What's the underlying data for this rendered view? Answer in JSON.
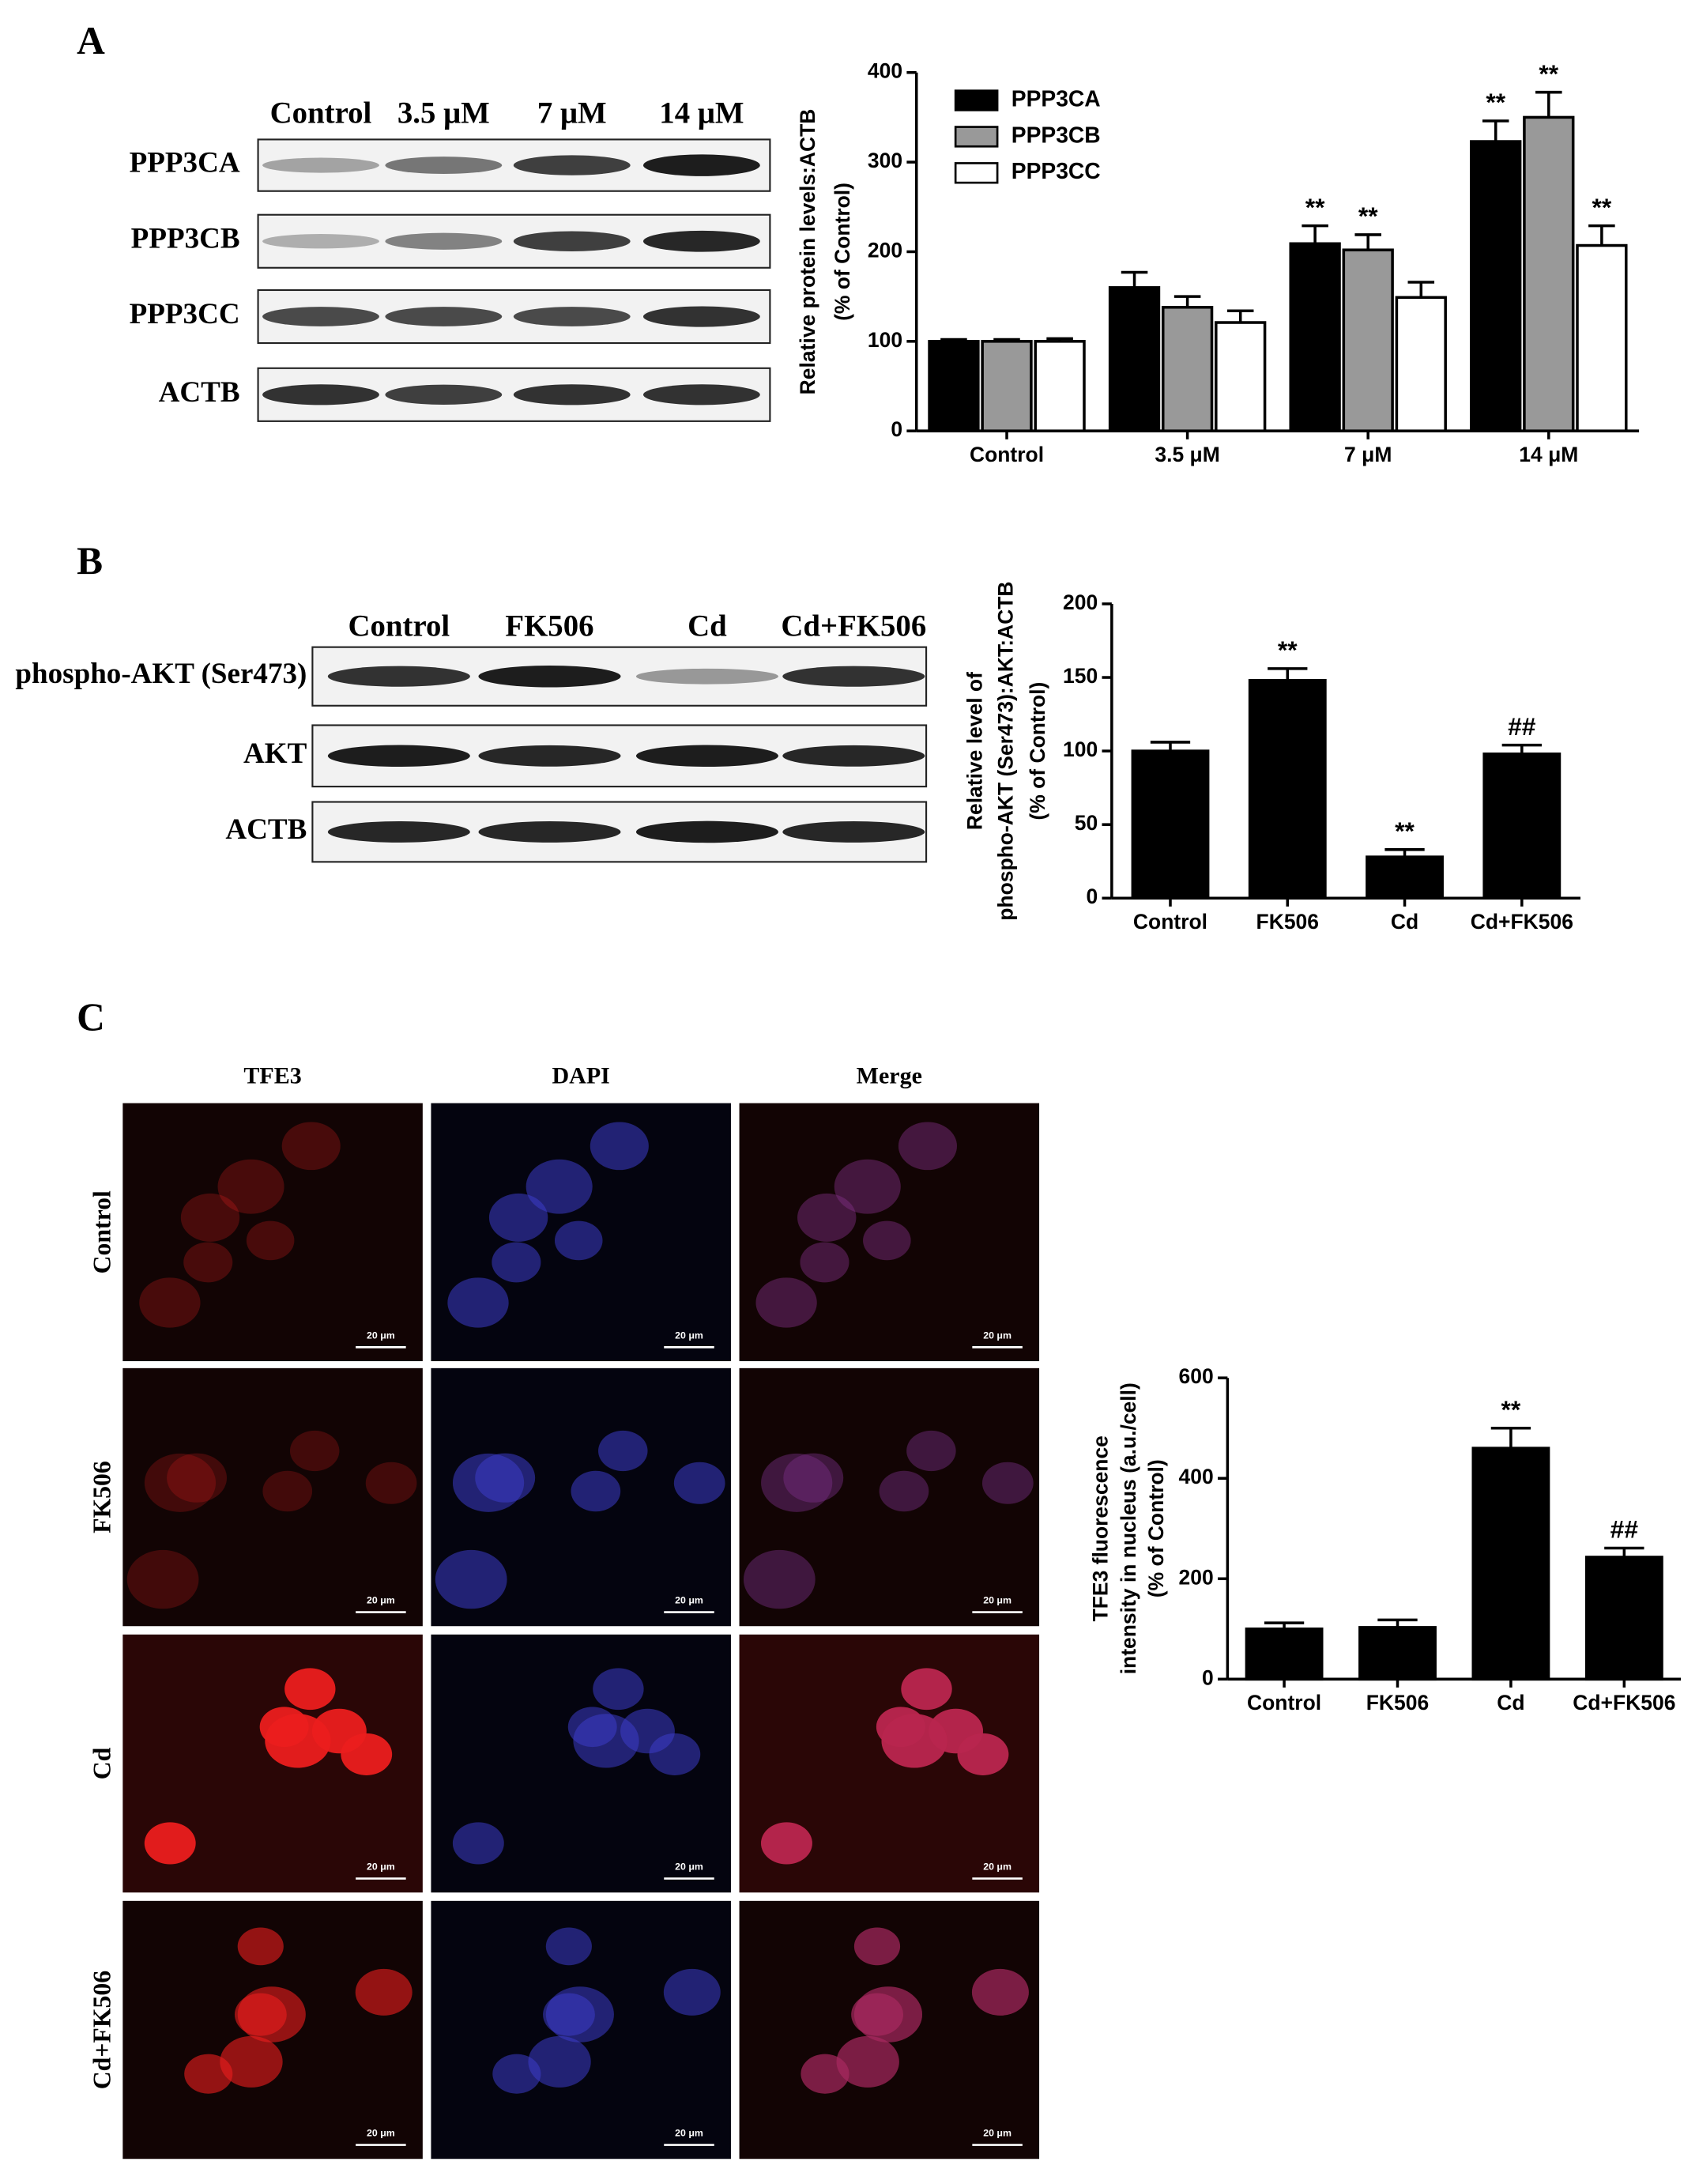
{
  "panels": [
    "A",
    "B",
    "C"
  ],
  "blot_a": {
    "lanes": [
      "Control",
      "3.5 μM",
      "7 μM",
      "14 μM"
    ],
    "rows": [
      "PPP3CA",
      "PPP3CB",
      "PPP3CC",
      "ACTB"
    ]
  },
  "blot_b": {
    "lanes": [
      "Control",
      "FK506",
      "Cd",
      "Cd+FK506"
    ],
    "rows": [
      "phospho-AKT (Ser473)",
      "AKT",
      "ACTB"
    ]
  },
  "microscopy": {
    "columns": [
      "TFE3",
      "DAPI",
      "Merge"
    ],
    "rows": [
      "Control",
      "FK506",
      "Cd",
      "Cd+FK506"
    ],
    "scale_bar": "20 μm"
  },
  "chart_data": [
    {
      "type": "bar",
      "ylabel": [
        "Relative protein levels:ACTB",
        "(% of Control)"
      ],
      "categories": [
        "Control",
        "3.5 μM",
        "7 μM",
        "14 μM"
      ],
      "ylim": [
        0,
        400
      ],
      "yticks": [
        0,
        100,
        200,
        300,
        400
      ],
      "series": [
        {
          "name": "PPP3CA",
          "color": "#000000",
          "values": [
            100,
            160,
            209,
            323
          ],
          "errors": [
            2,
            17,
            20,
            23
          ],
          "annotations": [
            null,
            null,
            "**",
            "**"
          ]
        },
        {
          "name": "PPP3CB",
          "color": "#999999",
          "values": [
            100,
            138,
            202,
            350
          ],
          "errors": [
            2,
            12,
            17,
            28
          ],
          "annotations": [
            null,
            null,
            "**",
            "**"
          ]
        },
        {
          "name": "PPP3CC",
          "color": "#ffffff",
          "values": [
            100,
            121,
            149,
            207
          ],
          "errors": [
            3,
            13,
            17,
            22
          ],
          "annotations": [
            null,
            null,
            null,
            "**"
          ]
        }
      ]
    },
    {
      "type": "bar",
      "ylabel": [
        "Relative level of",
        "phospho-AKT (Ser473):AKT:ACTB",
        "(% of Control)"
      ],
      "categories": [
        "Control",
        "FK506",
        "Cd",
        "Cd+FK506"
      ],
      "ylim": [
        0,
        200
      ],
      "yticks": [
        0,
        50,
        100,
        150,
        200
      ],
      "color": "#000000",
      "values": [
        100,
        148,
        28,
        98
      ],
      "errors": [
        6,
        8,
        5,
        6
      ],
      "annotations": [
        null,
        "**",
        "**",
        "##"
      ]
    },
    {
      "type": "bar",
      "ylabel": [
        "TFE3 fluorescence",
        "intensity in nucleus (a.u./cell)",
        "(% of Control)"
      ],
      "categories": [
        "Control",
        "FK506",
        "Cd",
        "Cd+FK506"
      ],
      "ylim": [
        0,
        600
      ],
      "yticks": [
        0,
        200,
        400,
        600
      ],
      "color": "#000000",
      "values": [
        100,
        103,
        460,
        243
      ],
      "errors": [
        12,
        15,
        40,
        18
      ],
      "annotations": [
        null,
        null,
        "**",
        "##"
      ]
    }
  ]
}
